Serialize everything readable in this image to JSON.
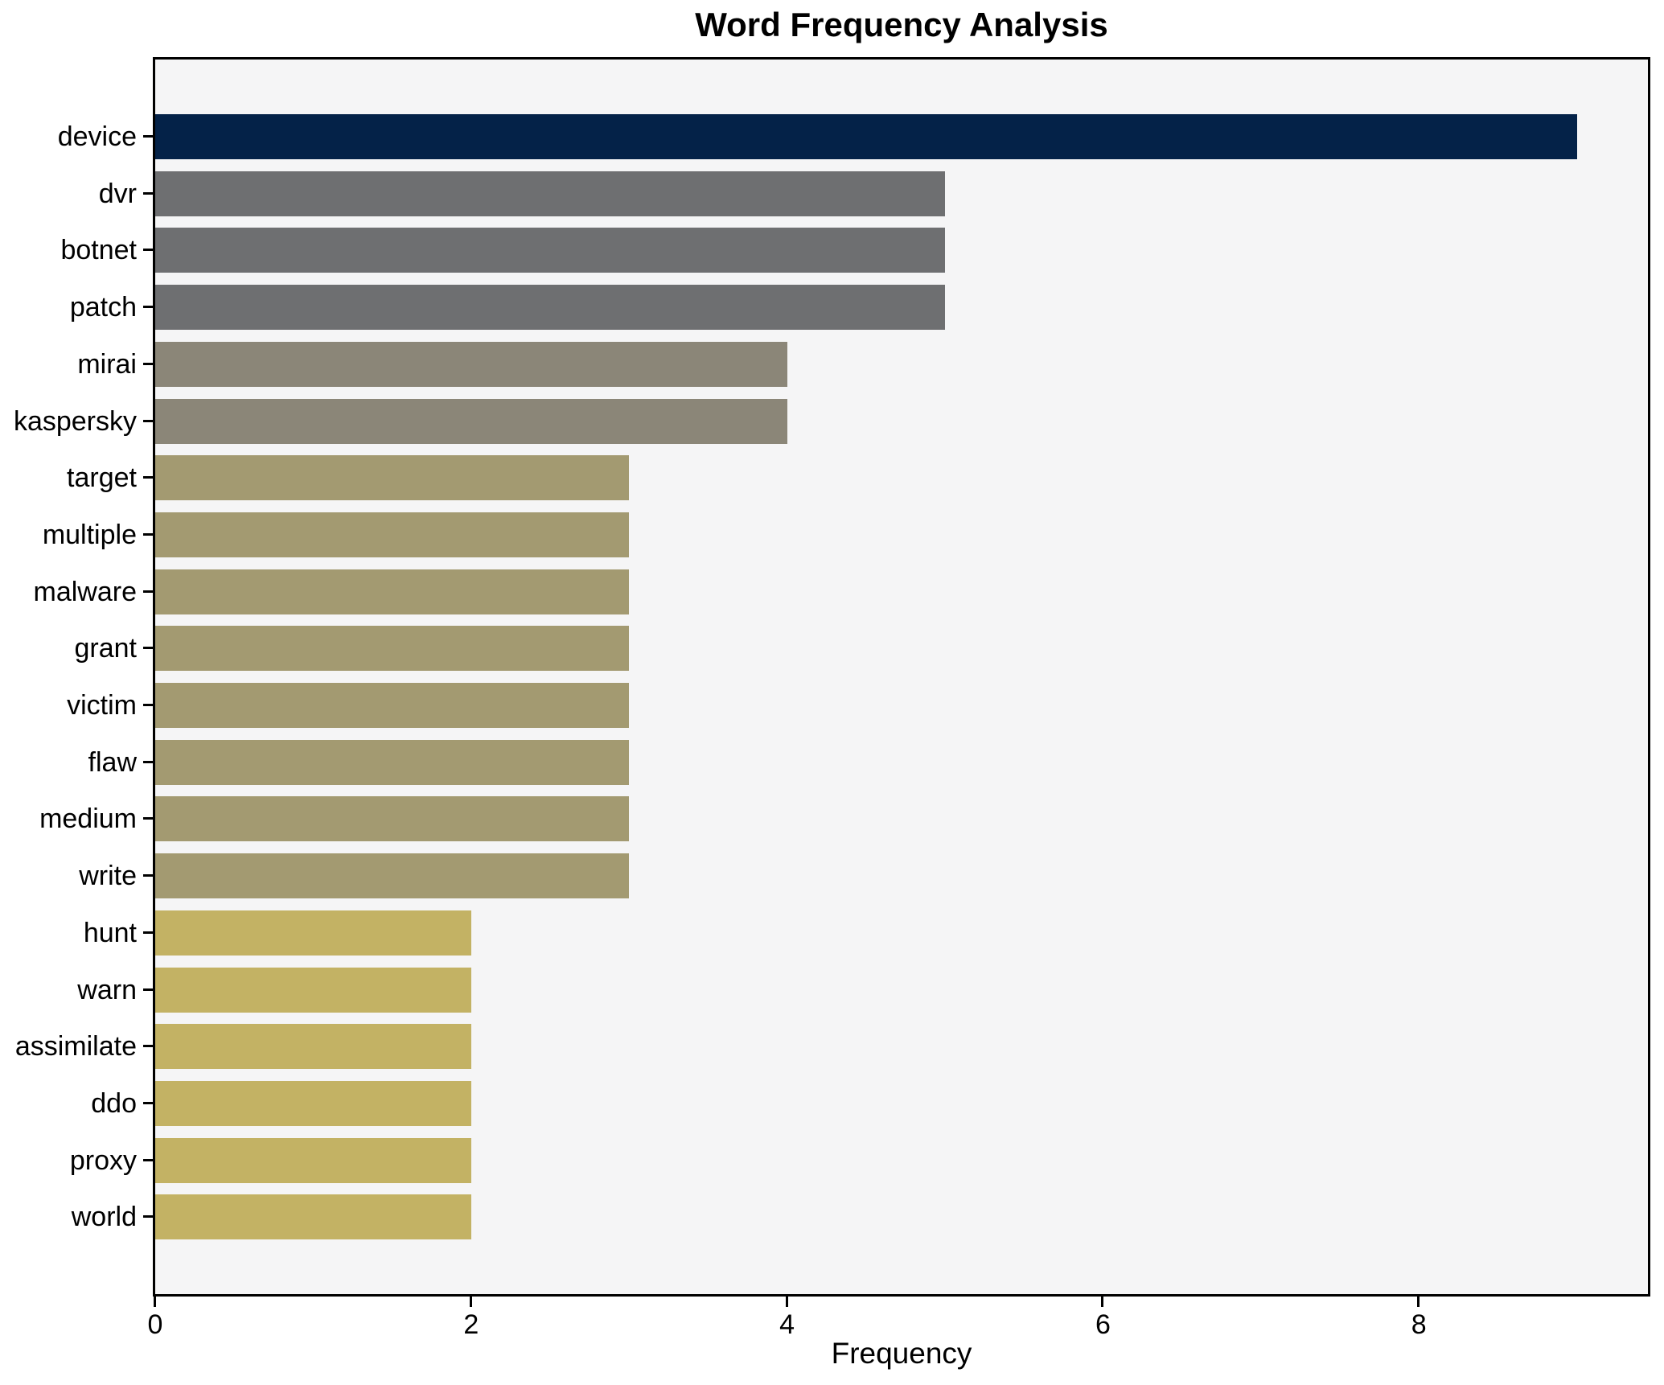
{
  "chart_data": {
    "type": "bar",
    "orientation": "horizontal",
    "title": "Word Frequency Analysis",
    "xlabel": "Frequency",
    "ylabel": "",
    "categories": [
      "device",
      "dvr",
      "botnet",
      "patch",
      "mirai",
      "kaspersky",
      "target",
      "multiple",
      "malware",
      "grant",
      "victim",
      "flaw",
      "medium",
      "write",
      "hunt",
      "warn",
      "assimilate",
      "ddo",
      "proxy",
      "world"
    ],
    "values": [
      9,
      5,
      5,
      5,
      4,
      4,
      3,
      3,
      3,
      3,
      3,
      3,
      3,
      3,
      2,
      2,
      2,
      2,
      2,
      2
    ],
    "bar_colors": [
      "#042248",
      "#6e6f71",
      "#6e6f71",
      "#6e6f71",
      "#8b8678",
      "#8b8678",
      "#a39a71",
      "#a39a71",
      "#a39a71",
      "#a39a71",
      "#a39a71",
      "#a39a71",
      "#a39a71",
      "#a39a71",
      "#c3b264",
      "#c3b264",
      "#c3b264",
      "#c3b264",
      "#c3b264",
      "#c3b264"
    ],
    "xlim": [
      0,
      9.45
    ],
    "xticks": [
      0,
      2,
      4,
      6,
      8
    ],
    "grid": false,
    "legend": null,
    "plot_bg": "#f5f5f6",
    "fig_bg": "#ffffff",
    "spine_color": "#000000"
  }
}
